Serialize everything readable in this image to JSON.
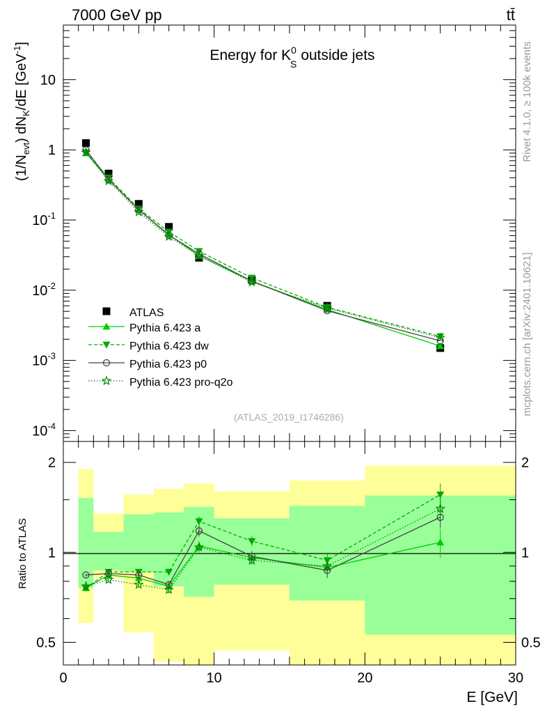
{
  "header": {
    "energy_label": "7000 GeV pp",
    "process_label": "tt̄"
  },
  "side_labels": {
    "rivet": "Rivet 4.1.0, ≥ 100k events",
    "mcplots": "mcplots.cern.ch [arXiv:2401.10621]"
  },
  "colors": {
    "atlas": "#000000",
    "pythia_a": "#00cc00",
    "pythia_dw": "#00aa00",
    "pythia_p0": "#444444",
    "pythia_pro": "#008800",
    "band_green": "#99ff99",
    "band_yellow": "#ffff99"
  },
  "chart_data": [
    {
      "type": "line",
      "title": "Energy for K_S^0 outside jets",
      "title_parts": {
        "main": "Energy for K",
        "sup": "0",
        "sub": "S",
        "rest": "outside jets"
      },
      "xlabel": "E [GeV]",
      "ylabel": "(1/N_evt) dN_K/dE [GeV^-1]",
      "ylabel_parts": {
        "a": "(1/N",
        "a_sub": "evt",
        "b": ") dN",
        "b_sub": "K",
        "c": "/dE [GeV",
        "c_sup": "-1",
        "d": "]"
      },
      "yscale": "log",
      "xlim": [
        0,
        30
      ],
      "ylim": [
        7e-05,
        60
      ],
      "x_ticks": [
        0,
        10,
        20,
        30
      ],
      "y_ticks": [
        {
          "value": 0.0001,
          "base": "10",
          "exp": "-4"
        },
        {
          "value": 0.001,
          "base": "10",
          "exp": "-3"
        },
        {
          "value": 0.01,
          "base": "10",
          "exp": "-2"
        },
        {
          "value": 0.1,
          "base": "10",
          "exp": "-1"
        },
        {
          "value": 1,
          "base": "1",
          "exp": ""
        },
        {
          "value": 10,
          "base": "10",
          "exp": ""
        }
      ],
      "watermark": "(ATLAS_2019_I1746286)",
      "x": [
        1.5,
        3,
        5,
        7,
        9,
        12.5,
        17.5,
        25
      ],
      "series": [
        {
          "name": "ATLAS",
          "values": [
            1.25,
            0.46,
            0.17,
            0.08,
            0.029,
            0.014,
            0.006,
            0.0015
          ]
        },
        {
          "name": "Pythia 6.423 a",
          "values": [
            0.9,
            0.38,
            0.14,
            0.062,
            0.031,
            0.0135,
            0.0053,
            0.0016
          ]
        },
        {
          "name": "Pythia 6.423 dw",
          "values": [
            0.92,
            0.4,
            0.145,
            0.068,
            0.036,
            0.015,
            0.0057,
            0.0022
          ]
        },
        {
          "name": "Pythia 6.423 p0",
          "values": [
            1.0,
            0.38,
            0.14,
            0.061,
            0.033,
            0.0135,
            0.0051,
            0.0019
          ]
        },
        {
          "name": "Pythia 6.423 pro-q2o",
          "values": [
            0.92,
            0.36,
            0.13,
            0.058,
            0.031,
            0.013,
            0.0056,
            0.0021
          ]
        }
      ],
      "legend_position": "bottom-left"
    },
    {
      "type": "line",
      "ylabel": "Ratio to ATLAS",
      "yscale": "log",
      "xlim": [
        0,
        30
      ],
      "ylim": [
        0.42,
        2.35
      ],
      "x_ticks": [
        0,
        10,
        20,
        30
      ],
      "y_ticks": [
        {
          "value": 0.5,
          "label": "0.5"
        },
        {
          "value": 1,
          "label": "1"
        },
        {
          "value": 2,
          "label": "2"
        }
      ],
      "bands": [
        {
          "x0": 1,
          "x1": 2,
          "green": [
            0.76,
            1.52
          ],
          "yellow": [
            0.58,
            1.9
          ]
        },
        {
          "x0": 2,
          "x1": 4,
          "green": [
            0.87,
            1.17
          ],
          "yellow": [
            0.82,
            1.35
          ]
        },
        {
          "x0": 4,
          "x1": 6,
          "green": [
            0.86,
            1.34
          ],
          "yellow": [
            0.54,
            1.56
          ]
        },
        {
          "x0": 6,
          "x1": 8,
          "green": [
            0.77,
            1.36
          ],
          "yellow": [
            0.43,
            1.63
          ]
        },
        {
          "x0": 8,
          "x1": 10,
          "green": [
            0.71,
            1.42
          ],
          "yellow": [
            0.34,
            1.7
          ]
        },
        {
          "x0": 10,
          "x1": 15,
          "green": [
            0.78,
            1.3
          ],
          "yellow": [
            0.47,
            1.6
          ]
        },
        {
          "x0": 15,
          "x1": 20,
          "green": [
            0.69,
            1.43
          ],
          "yellow": [
            0.34,
            1.74
          ]
        },
        {
          "x0": 20,
          "x1": 30,
          "green": [
            0.53,
            1.55
          ],
          "yellow": [
            0.34,
            1.95
          ]
        }
      ],
      "series": [
        {
          "name": "Pythia 6.423 a",
          "values": [
            0.76,
            0.84,
            0.82,
            0.77,
            1.05,
            0.96,
            0.89,
            1.08
          ],
          "errors": [
            0.01,
            0.01,
            0.015,
            0.02,
            0.04,
            0.03,
            0.04,
            0.12
          ]
        },
        {
          "name": "Pythia 6.423 dw",
          "values": [
            0.76,
            0.86,
            0.86,
            0.86,
            1.27,
            1.09,
            0.94,
            1.56
          ],
          "errors": [
            0.01,
            0.01,
            0.015,
            0.02,
            0.05,
            0.04,
            0.05,
            0.14
          ]
        },
        {
          "name": "Pythia 6.423 p0",
          "values": [
            0.84,
            0.85,
            0.84,
            0.78,
            1.18,
            0.97,
            0.87,
            1.31
          ],
          "errors": [
            0.01,
            0.01,
            0.015,
            0.02,
            0.05,
            0.04,
            0.05,
            0.1
          ]
        },
        {
          "name": "Pythia 6.423 pro-q2o",
          "values": [
            0.77,
            0.81,
            0.78,
            0.75,
            1.04,
            0.94,
            0.9,
            1.4
          ],
          "errors": [
            0.01,
            0.01,
            0.015,
            0.02,
            0.04,
            0.03,
            0.04,
            0.12
          ]
        }
      ]
    }
  ]
}
